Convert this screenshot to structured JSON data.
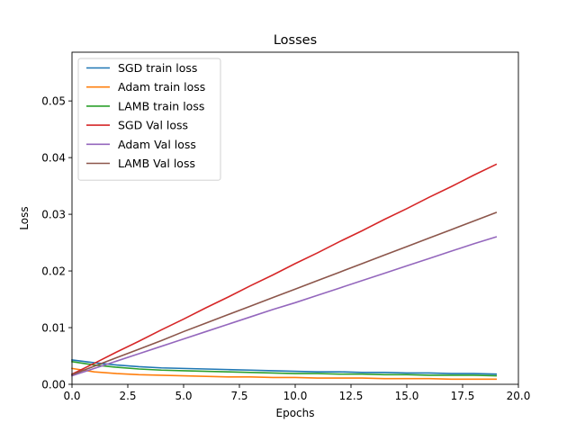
{
  "chart_data": {
    "type": "line",
    "title": "Losses",
    "xlabel": "Epochs",
    "ylabel": "Loss",
    "xlim": [
      0,
      20
    ],
    "ylim": [
      0,
      0.0586
    ],
    "xticks": [
      0,
      2.5,
      5,
      7.5,
      10,
      12.5,
      15,
      17.5,
      20
    ],
    "xtick_labels": [
      "0.0",
      "2.5",
      "5.0",
      "7.5",
      "10.0",
      "12.5",
      "15.0",
      "17.5",
      "20.0"
    ],
    "yticks": [
      0,
      0.01,
      0.02,
      0.03,
      0.04,
      0.05
    ],
    "ytick_labels": [
      "0.00",
      "0.01",
      "0.02",
      "0.03",
      "0.04",
      "0.05"
    ],
    "grid": false,
    "legend_position": "top-left",
    "x": [
      0,
      1,
      2,
      3,
      4,
      5,
      6,
      7,
      8,
      9,
      10,
      11,
      12,
      13,
      14,
      15,
      16,
      17,
      18,
      19
    ],
    "series": [
      {
        "name": "SGD train loss",
        "color": "#1f77b4",
        "values": [
          0.0043,
          0.0038,
          0.0034,
          0.0031,
          0.0029,
          0.0028,
          0.0027,
          0.0026,
          0.0025,
          0.0024,
          0.0023,
          0.0022,
          0.0022,
          0.0021,
          0.0021,
          0.002,
          0.002,
          0.0019,
          0.0019,
          0.0018
        ]
      },
      {
        "name": "Adam train loss",
        "color": "#ff7f0e",
        "values": [
          0.0028,
          0.0022,
          0.0019,
          0.0017,
          0.0016,
          0.0015,
          0.0014,
          0.0013,
          0.0013,
          0.0012,
          0.0012,
          0.0011,
          0.0011,
          0.0011,
          0.001,
          0.001,
          0.001,
          0.0009,
          0.0009,
          0.0009
        ]
      },
      {
        "name": "LAMB train loss",
        "color": "#2ca02c",
        "values": [
          0.004,
          0.0034,
          0.003,
          0.0027,
          0.0025,
          0.0024,
          0.0023,
          0.0022,
          0.0021,
          0.002,
          0.0019,
          0.0019,
          0.0018,
          0.0018,
          0.0017,
          0.0017,
          0.0016,
          0.0016,
          0.0016,
          0.0015
        ]
      },
      {
        "name": "SGD Val loss",
        "color": "#d62728",
        "values": [
          0.0018,
          0.0037,
          0.0057,
          0.0076,
          0.0096,
          0.0115,
          0.0135,
          0.0154,
          0.0174,
          0.0193,
          0.0213,
          0.0232,
          0.0252,
          0.0271,
          0.0291,
          0.031,
          0.033,
          0.0349,
          0.0369,
          0.0388
        ]
      },
      {
        "name": "Adam Val loss",
        "color": "#9467bd",
        "values": [
          0.0015,
          0.0028,
          0.0041,
          0.0054,
          0.0067,
          0.008,
          0.0093,
          0.0106,
          0.0119,
          0.0132,
          0.0144,
          0.0157,
          0.017,
          0.0183,
          0.0196,
          0.0209,
          0.0222,
          0.0235,
          0.0248,
          0.026
        ]
      },
      {
        "name": "LAMB Val loss",
        "color": "#8c564b",
        "values": [
          0.0017,
          0.0032,
          0.0047,
          0.0062,
          0.0077,
          0.0093,
          0.0108,
          0.0123,
          0.0138,
          0.0153,
          0.0168,
          0.0183,
          0.0198,
          0.0213,
          0.0228,
          0.0243,
          0.0258,
          0.0273,
          0.0288,
          0.0303
        ]
      }
    ]
  }
}
